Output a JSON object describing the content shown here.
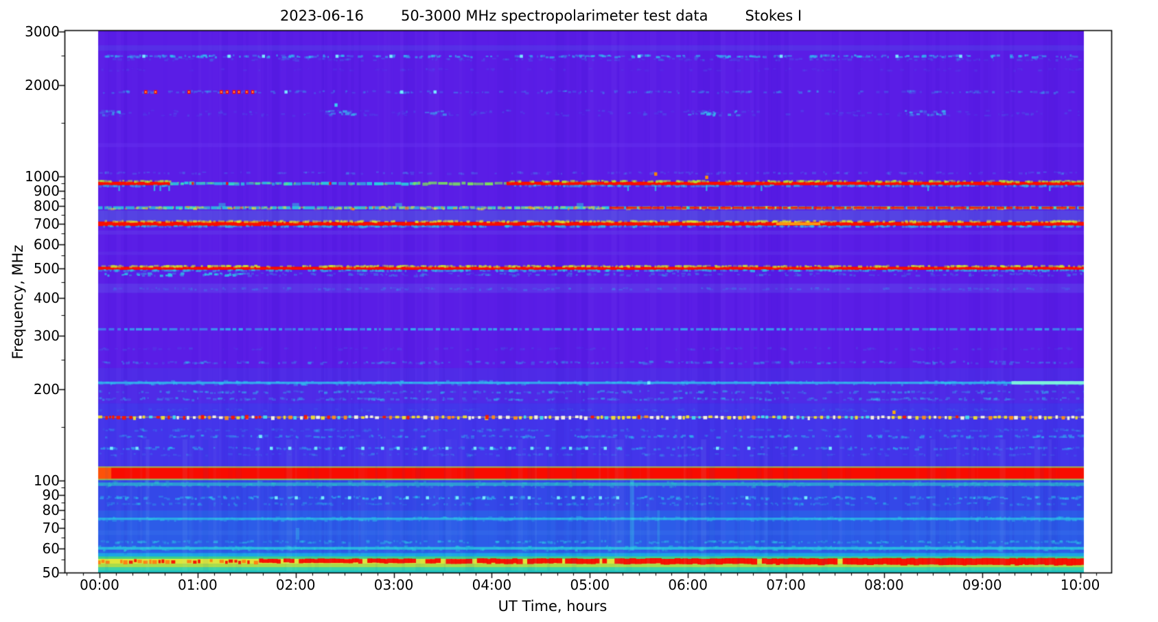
{
  "title": {
    "date": "2023-06-16",
    "main": "50-3000 MHz spectropolarimeter test data",
    "stokes": "Stokes I"
  },
  "chart_data": {
    "type": "heatmap",
    "title": "2023-06-16    50-3000 MHz spectropolarimeter test data    Stokes I",
    "x_axis": {
      "label": "UT Time, hours",
      "tick_hours": [
        0,
        1,
        2,
        3,
        4,
        5,
        6,
        7,
        8,
        9,
        10
      ],
      "tick_labels": [
        "00:00",
        "01:00",
        "02:00",
        "03:00",
        "04:00",
        "05:00",
        "06:00",
        "07:00",
        "08:00",
        "09:00",
        "10:00"
      ],
      "minor_step_minutes": 10,
      "data_start_hours": 0,
      "data_end_hours": 10.04
    },
    "y_axis": {
      "label": "Frequency, MHz",
      "scale": "log",
      "range_mhz": [
        50,
        3000
      ],
      "major_ticks": [
        3000,
        2000,
        1000,
        900,
        800,
        700,
        600,
        500,
        400,
        300,
        200,
        100,
        90,
        80,
        70,
        60,
        50
      ],
      "minor_ticks": [
        2500,
        1500,
        950,
        850,
        750,
        650,
        550,
        450,
        350,
        250,
        150,
        95,
        85,
        75,
        65,
        55
      ]
    },
    "colormap": "rainbow: low=violet-blue, mid=cyan/green, high=yellow/red",
    "background": {
      "base": "#5a1de6",
      "zones": [
        {
          "f_hi": 775,
          "f_lo": 712,
          "color": "#5543e3"
        },
        {
          "f_hi": 445,
          "f_lo": 415,
          "color": "#5c33e8"
        },
        {
          "f_hi": 235,
          "f_lo": 180,
          "color": "#4f2be7"
        },
        {
          "f_hi": 180,
          "f_lo": 112,
          "color": "#4335ea"
        },
        {
          "f_hi": 101.5,
          "f_lo": 80,
          "color": "#3448e8"
        },
        {
          "f_hi": 80,
          "f_lo": 59,
          "color": "#2c5ce8"
        }
      ],
      "bottom_strata": [
        {
          "f_hi": 59,
          "f_lo": 57.9,
          "color": "#2b62e8"
        },
        {
          "f_hi": 57.9,
          "f_lo": 56.4,
          "color": "#1aa6e4"
        },
        {
          "f_hi": 56.4,
          "f_lo": 55.4,
          "color": "#3ed088"
        },
        {
          "f_hi": 55.4,
          "f_lo": 53.4,
          "color": "#dde63a"
        },
        {
          "f_hi": 53.4,
          "f_lo": 52.0,
          "color": "#a8dc4a"
        },
        {
          "f_hi": 52.0,
          "f_lo": 50.8,
          "color": "#3cd4a4"
        },
        {
          "f_hi": 50.8,
          "f_lo": 50.0,
          "color": "#24c4c4"
        }
      ]
    },
    "rfi_bands": [
      {
        "name": "band-2650",
        "freq_mhz": 2650,
        "style": "wash",
        "color": "#4a80f0",
        "alpha": 0.18,
        "h": 8
      },
      {
        "name": "band-2490",
        "freq_mhz": 2490,
        "style": "speckle",
        "color": "#2cc8f2",
        "alpha": 0.6,
        "h": 3,
        "density": 1.0,
        "bright_times": [
          0.45,
          1.32,
          1.67,
          2.42,
          2.97,
          4.3,
          5.5,
          6.95,
          8.13,
          8.78
        ]
      },
      {
        "name": "band-2430",
        "freq_mhz": 2430,
        "style": "speckle",
        "color": "#3a92ee",
        "alpha": 0.28,
        "h": 3,
        "density": 0.6
      },
      {
        "name": "band-2250",
        "freq_mhz": 2250,
        "style": "speckle",
        "color": "#4b5cec",
        "alpha": 0.25,
        "h": 3,
        "density": 0.4
      },
      {
        "name": "band-1900",
        "freq_mhz": 1900,
        "style": "speckle",
        "color": "#32b0f0",
        "alpha": 0.42,
        "h": 3,
        "density": 0.7,
        "red_dot_times": [
          0.47,
          0.57,
          0.91,
          1.24,
          1.3,
          1.37,
          1.42,
          1.5,
          1.56
        ],
        "bright_times": [
          1.9,
          3.08,
          3.42
        ]
      },
      {
        "name": "band-1620",
        "freq_mhz": 1620,
        "style": "speckle",
        "color": "#3f7eee",
        "alpha": 0.26,
        "h": 8,
        "density": 0.8,
        "bright_segments": [
          [
            0,
            0.25
          ],
          [
            2.3,
            2.6
          ],
          [
            3.3,
            3.5
          ],
          [
            6.0,
            6.5
          ],
          [
            8.2,
            8.6
          ]
        ]
      },
      {
        "name": "band-1270",
        "freq_mhz": 1270,
        "style": "wash",
        "color": "#6a38f0",
        "alpha": 0.35,
        "h": 6
      },
      {
        "name": "band-1030",
        "freq_mhz": 1030,
        "style": "speckle",
        "color": "#40a8f0",
        "alpha": 0.28,
        "h": 2.5,
        "density": 0.6
      },
      {
        "name": "band-950",
        "freq_mhz": 950,
        "style": "segmented",
        "h": 5,
        "fringe_top": "#b8e830",
        "fringe_bottom": "#2cd0e8",
        "segments": [
          {
            "t0": -0.02,
            "t1": 0.72,
            "color": "#f80c00",
            "kind": "solid"
          },
          {
            "t0": 0.72,
            "t1": 3.2,
            "color": "#26d2e2",
            "kind": "rough"
          },
          {
            "t0": 3.2,
            "t1": 4.15,
            "color": "#7ce060",
            "kind": "rough"
          },
          {
            "t0": 4.15,
            "t1": 10.04,
            "color": "#f80c00",
            "kind": "solid"
          }
        ],
        "tick_marks_below": [
          0.2,
          0.56,
          0.62,
          0.71,
          5.39,
          5.67,
          6.19,
          6.75,
          8.45,
          9.69
        ],
        "red_fleck_times": [
          0.95,
          1.3,
          2.35
        ]
      },
      {
        "name": "band-790",
        "freq_mhz": 790,
        "style": "mixed",
        "h": 4.5,
        "base_color": "#28d0e0",
        "speckle_colors": [
          "#e8e030",
          "#ff9010"
        ],
        "red_color": "#f81800",
        "red_after_t": 5.2,
        "bump_times": [
          1.25,
          2.0,
          3.05,
          4.9
        ]
      },
      {
        "name": "band-700",
        "freq_mhz": 700,
        "style": "solid",
        "color": "#f80c00",
        "h": 5.5,
        "thick_until_t": 1.82,
        "orange_segment": [
          6.9,
          7.35
        ],
        "orange_color": "#ff9c10",
        "fringe_top": "#d8e830",
        "fringe_bottom": "#30c8e8"
      },
      {
        "name": "band-655",
        "freq_mhz": 655,
        "style": "wash",
        "color": "#613ae9",
        "alpha": 0.5,
        "h": 6
      },
      {
        "name": "band-560",
        "freq_mhz": 560,
        "style": "wash",
        "color": "#613ae9",
        "alpha": 0.4,
        "h": 5
      },
      {
        "name": "band-500",
        "freq_mhz": 500,
        "style": "solid",
        "color": "#f80c00",
        "h": 4.5,
        "fringe_top": "#cce830",
        "fringe_bottom": "#2cc8e8"
      },
      {
        "name": "band-477",
        "freq_mhz": 477,
        "style": "speckle",
        "color": "#2cc8e8",
        "alpha": 0.75,
        "h": 4,
        "density": 1.2,
        "fade_after_t": 1.5,
        "faded_alpha": 0.28
      },
      {
        "name": "band-428",
        "freq_mhz": 428,
        "style": "speckle",
        "color": "#38a0ee",
        "alpha": 0.3,
        "h": 3,
        "density": 0.6
      },
      {
        "name": "band-315",
        "freq_mhz": 315,
        "style": "dashline",
        "color": "#2cd0f0",
        "alpha": 0.78,
        "h": 3.5
      },
      {
        "name": "band-272",
        "freq_mhz": 272,
        "style": "speckle",
        "color": "#3a8aec",
        "alpha": 0.2,
        "h": 3,
        "density": 0.5
      },
      {
        "name": "band-245",
        "freq_mhz": 245,
        "style": "speckle",
        "color": "#30b8ee",
        "alpha": 0.38,
        "h": 3,
        "density": 0.9
      },
      {
        "name": "band-210",
        "freq_mhz": 210,
        "style": "roughline",
        "color": "#2cd0f0",
        "alpha": 0.72,
        "h": 3.5,
        "bright_end": {
          "t0": 9.3,
          "color": "#84f8dc",
          "h": 5
        },
        "bright_times": [
          5.6
        ]
      },
      {
        "name": "band-196",
        "freq_mhz": 196,
        "style": "speckle",
        "color": "#30b8ee",
        "alpha": 0.45,
        "h": 3,
        "density": 0.8
      },
      {
        "name": "band-186",
        "freq_mhz": 186,
        "style": "speckle",
        "color": "#30b8ee",
        "alpha": 0.4,
        "h": 3,
        "density": 1.0
      },
      {
        "name": "band-171",
        "freq_mhz": 171,
        "style": "speckle",
        "color": "#3a7eec",
        "alpha": 0.25,
        "h": 3,
        "density": 0.6
      },
      {
        "name": "band-162",
        "freq_mhz": 162,
        "style": "dotchain",
        "h": 5,
        "base_color": "#e8d820",
        "palette": [
          "#f8f8e8",
          "#f0e230",
          "#ff9018",
          "#40e0f0",
          "#f81400"
        ],
        "red_heavy_until_t": 0.7,
        "red_times": [
          1.05,
          1.5,
          2.1,
          3.95,
          5.5
        ]
      },
      {
        "name": "band-147",
        "freq_mhz": 147,
        "style": "speckle",
        "color": "#30b0ee",
        "alpha": 0.3,
        "h": 3,
        "density": 0.7
      },
      {
        "name": "band-140",
        "freq_mhz": 140,
        "style": "speckle",
        "color": "#2cc4f0",
        "alpha": 0.45,
        "h": 3,
        "density": 0.9,
        "bright_times": [
          1.64
        ]
      },
      {
        "name": "band-128",
        "freq_mhz": 128,
        "style": "speckle",
        "color": "#2cc4f0",
        "alpha": 0.45,
        "h": 3,
        "density": 0.9,
        "bright_cluster": {
          "t0": 1.75,
          "t1": 5.35,
          "step": 0.22
        },
        "bright_times": [
          0.12,
          0.38,
          6.3,
          6.62,
          7.1,
          7.45
        ]
      },
      {
        "name": "band-122",
        "freq_mhz": 122,
        "style": "speckle",
        "color": "#3a9aee",
        "alpha": 0.3,
        "h": 3,
        "density": 0.6
      },
      {
        "name": "band-fm",
        "freq_top_mhz": 110.5,
        "freq_bottom_mhz": 101.5,
        "style": "block",
        "color": "#f80c00",
        "fringe": "#b0e428",
        "orange_until_t": 0.12,
        "orange_color": "#ff8c10"
      },
      {
        "name": "band-97",
        "freq_mhz": 97.5,
        "style": "roughline",
        "color": "#2ad0c8",
        "alpha": 0.6,
        "h": 5
      },
      {
        "name": "band-88",
        "freq_mhz": 88,
        "style": "speckle",
        "color": "#2cc8f0",
        "alpha": 0.5,
        "h": 3.5,
        "density": 1.0,
        "bright_cluster": {
          "t0": 1.8,
          "t1": 5.4,
          "step": 0.24
        },
        "bright_times": [
          4.83,
          6.6,
          7.2
        ]
      },
      {
        "name": "band-84",
        "freq_mhz": 84,
        "style": "speckle",
        "color": "#2cb8ee",
        "alpha": 0.38,
        "h": 3,
        "density": 0.8
      },
      {
        "name": "band-75",
        "freq_mhz": 75,
        "style": "roughline",
        "color": "#2ac8e8",
        "alpha": 0.72,
        "h": 3.5
      },
      {
        "name": "band-67",
        "freq_mhz": 67.5,
        "style": "wash",
        "color": "#3a78ec",
        "alpha": 0.3,
        "h": 7
      },
      {
        "name": "band-63",
        "freq_mhz": 63,
        "style": "speckle",
        "color": "#2cc0e8",
        "alpha": 0.5,
        "h": 3,
        "density": 1.0
      },
      {
        "name": "band-60",
        "freq_mhz": 60,
        "style": "roughline",
        "color": "#28d0e0",
        "alpha": 0.8,
        "h": 4
      },
      {
        "name": "band-55",
        "freq_top_mhz": 55.4,
        "freq_bottom_mhz": 53.4,
        "style": "dotted_red",
        "orange_color": "#ff7d10",
        "red_color": "#f80c00",
        "orange_until_t": 1.6
      }
    ],
    "vertical_streaks": [
      {
        "t": 5.43,
        "f_hi": 101,
        "f_lo": 59,
        "color": "#40e8e8",
        "alpha": 0.3,
        "w": 6
      },
      {
        "t": 5.7,
        "f_hi": 80,
        "f_lo": 58,
        "color": "#40e8e8",
        "alpha": 0.22,
        "w": 4
      },
      {
        "t": 2.02,
        "f_hi": 70,
        "f_lo": 64,
        "color": "#38d8e8",
        "alpha": 0.3,
        "w": 5
      },
      {
        "t": 2.55,
        "f_hi": 63,
        "f_lo": 58,
        "color": "#38d8e8",
        "alpha": 0.2,
        "w": 4
      }
    ],
    "isolated_dots": [
      {
        "t": 5.67,
        "freq_mhz": 1020,
        "color": "#ff8400"
      },
      {
        "t": 6.19,
        "freq_mhz": 995,
        "color": "#ff9800"
      },
      {
        "t": 2.41,
        "freq_mhz": 1720,
        "color": "#38d8f0"
      },
      {
        "t": 8.1,
        "freq_mhz": 168,
        "color": "#ffb000"
      }
    ]
  }
}
